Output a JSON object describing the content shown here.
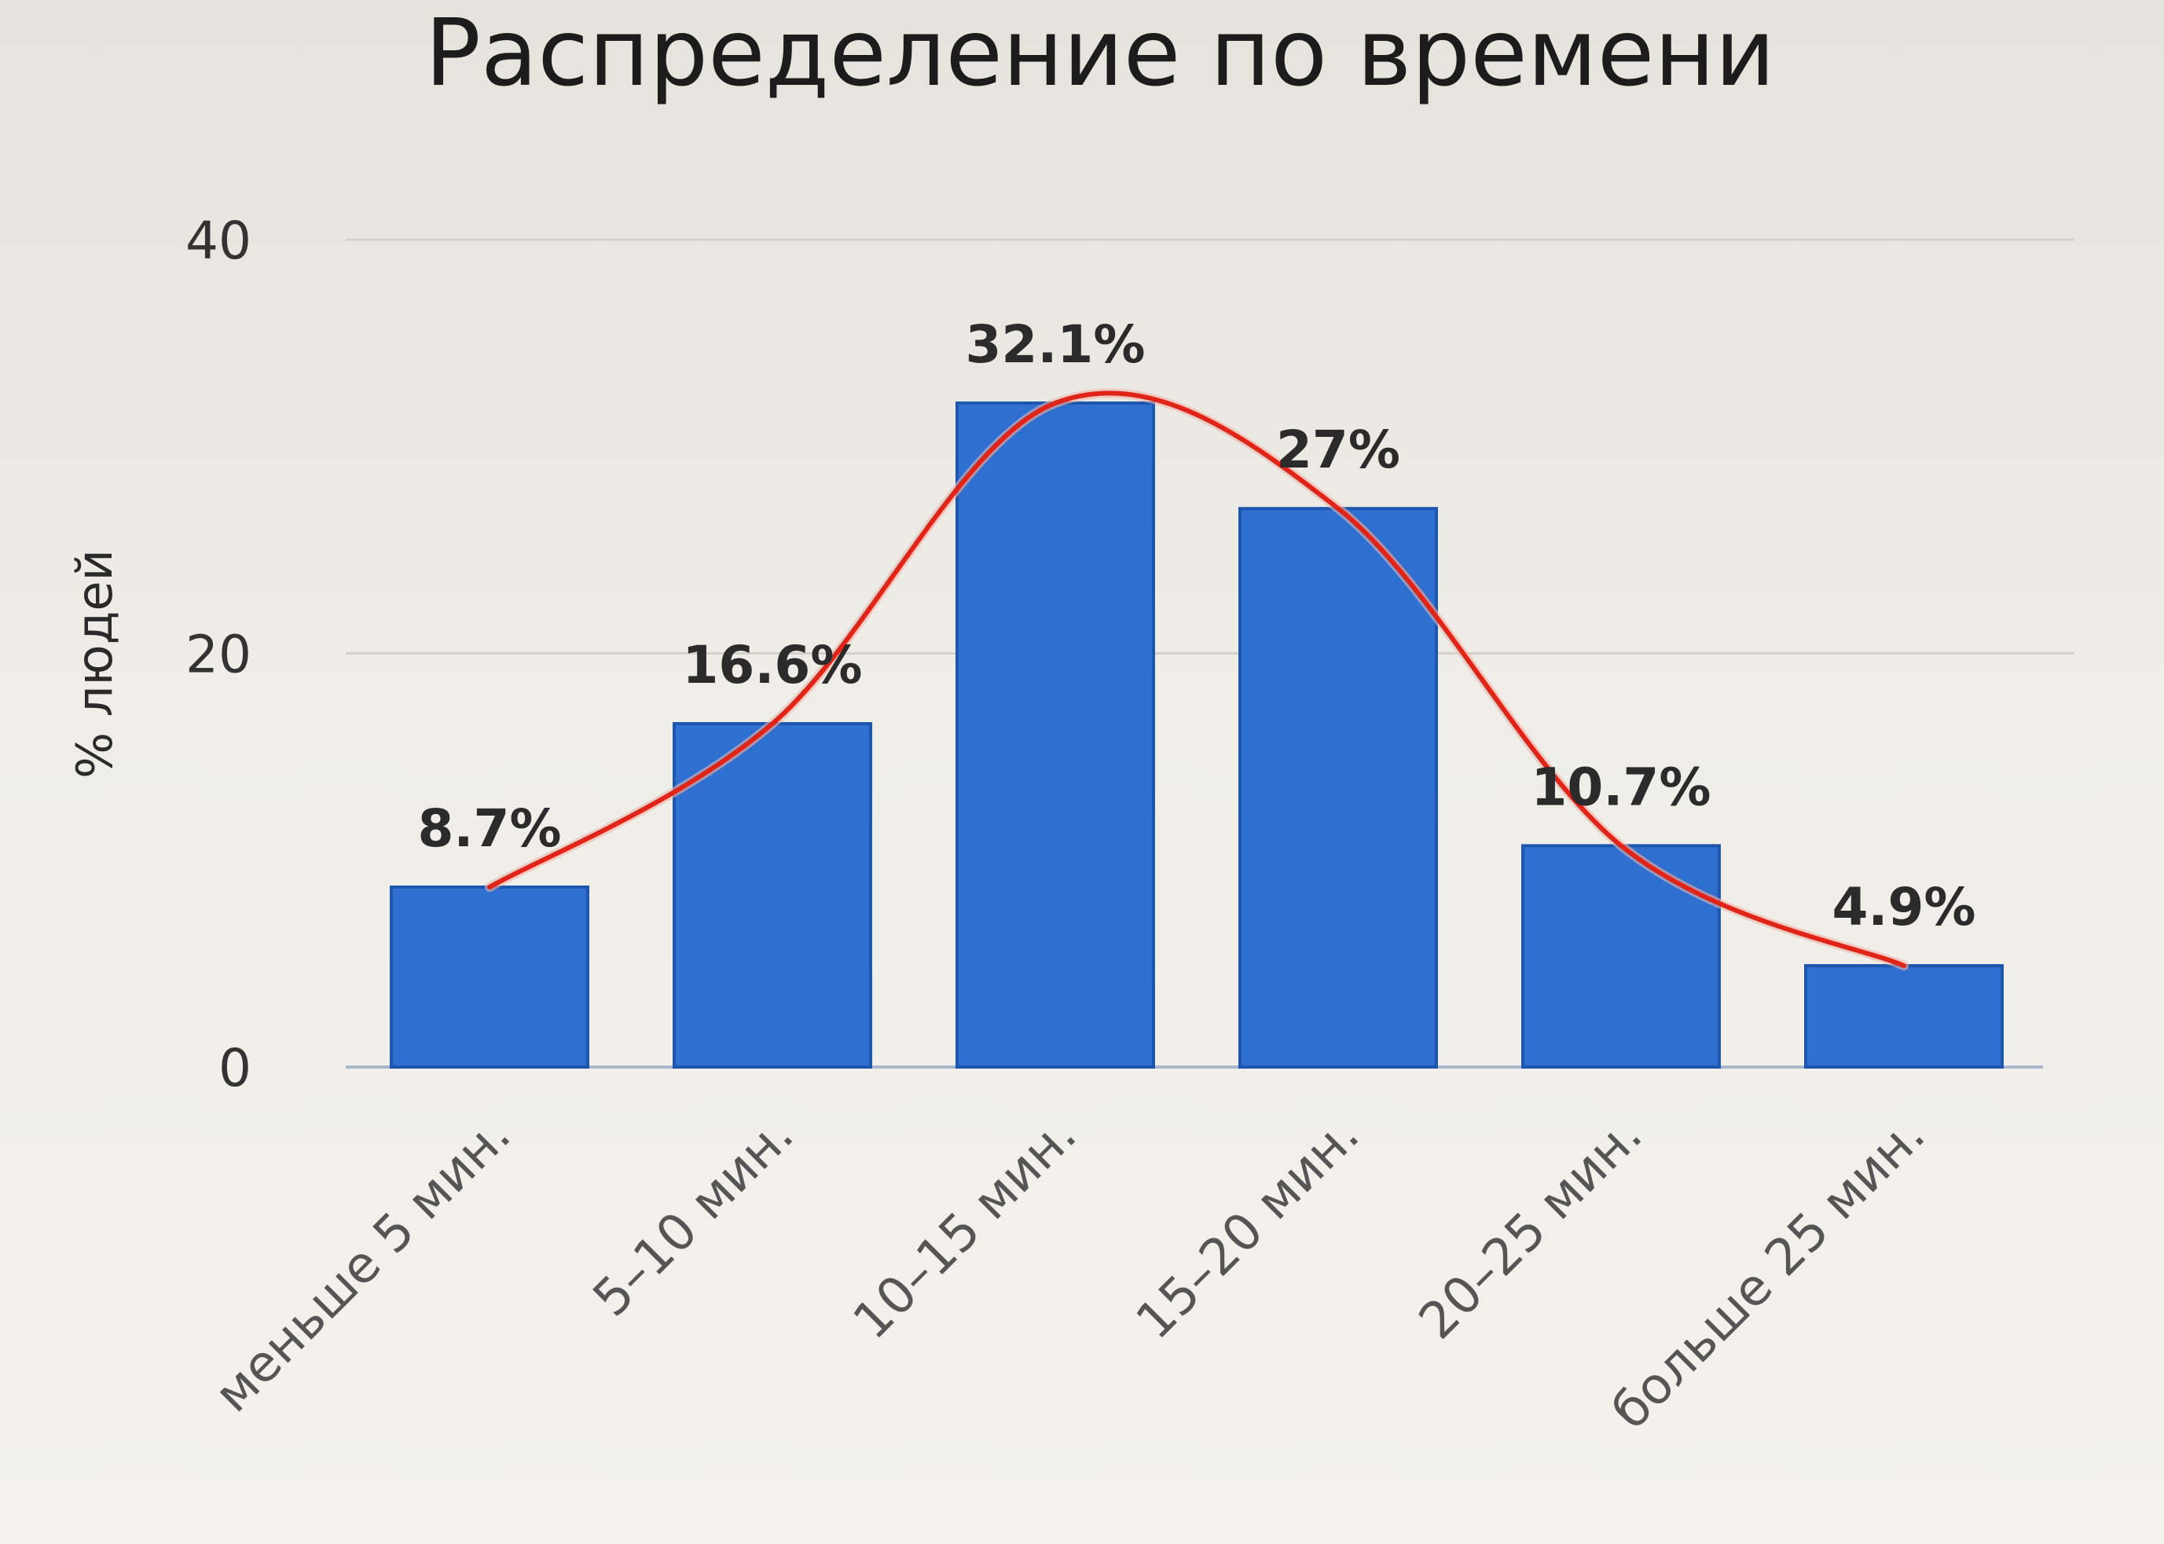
{
  "chart_data": {
    "type": "bar",
    "title": "Распределение по времени",
    "xlabel": "",
    "ylabel": "% людей",
    "ylim": [
      0,
      40
    ],
    "yticks": [
      0,
      20,
      40
    ],
    "grid": true,
    "categories": [
      "меньше 5 мин.",
      "5–10 мин.",
      "10–15 мин.",
      "15–20 мин.",
      "20–25 мин.",
      "больше 25 мин."
    ],
    "values": [
      8.7,
      16.6,
      32.1,
      27,
      10.7,
      4.9
    ],
    "data_labels": [
      "8.7%",
      "16.6%",
      "32.1%",
      "27%",
      "10.7%",
      "4.9%"
    ],
    "trend_line": true,
    "colors": {
      "bar": "#2f6fd0",
      "bar_edge": "#1f56ad",
      "trend": "#e02418",
      "grid": "#d2d1ca",
      "baseline": "#a9b7cf"
    }
  }
}
